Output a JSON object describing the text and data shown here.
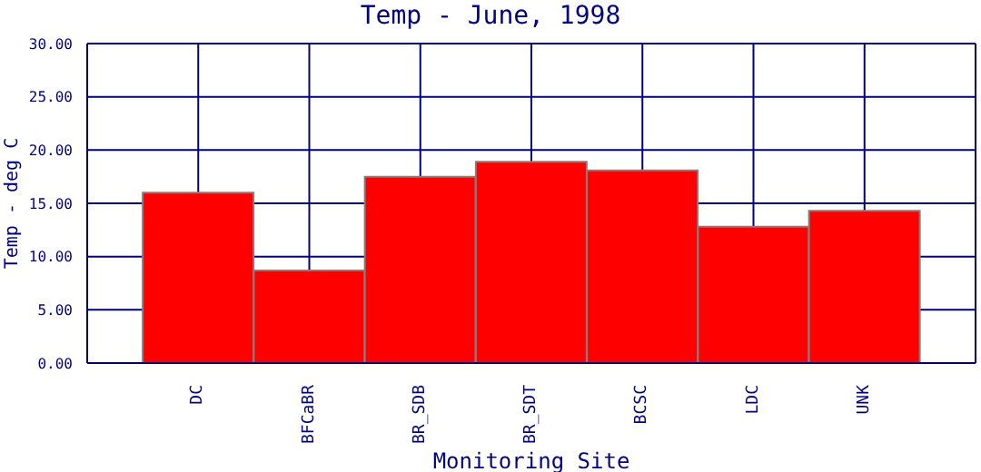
{
  "chart_data": {
    "type": "bar",
    "title": "Temp - June, 1998",
    "xlabel": "Monitoring Site",
    "ylabel": "Temp - deg C",
    "categories": [
      "DC",
      "BFCaBR",
      "BR_SDB",
      "BR_SDT",
      "BCSC",
      "LDC",
      "UNK"
    ],
    "values": [
      16.0,
      8.7,
      17.5,
      18.9,
      18.1,
      12.8,
      14.3
    ],
    "color": "#ff0000",
    "ylim": [
      0,
      30
    ],
    "yticks": [
      {
        "value": 0,
        "label": "0.00"
      },
      {
        "value": 5,
        "label": "5.00"
      },
      {
        "value": 10,
        "label": "10.00"
      },
      {
        "value": 15,
        "label": "15.00"
      },
      {
        "value": 20,
        "label": "20.00"
      },
      {
        "value": 25,
        "label": "25.00"
      },
      {
        "value": 30,
        "label": "30.00"
      }
    ],
    "grid": true
  }
}
